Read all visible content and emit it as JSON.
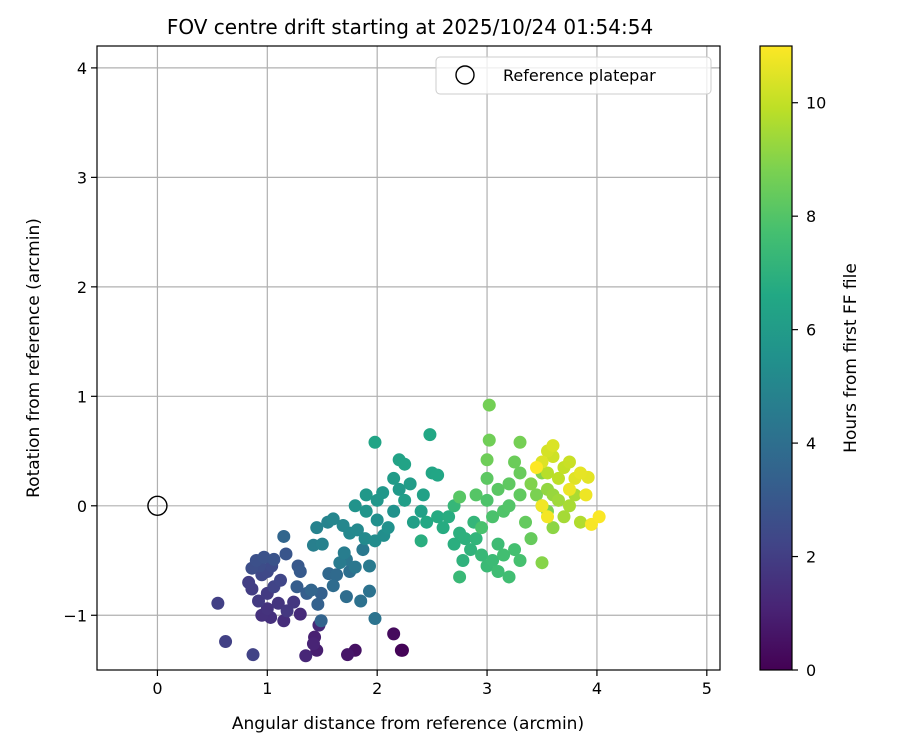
{
  "chart_data": {
    "type": "scatter",
    "title": "FOV centre drift starting at 2025/10/24 01:54:54",
    "xlabel": "Angular distance from reference (arcmin)",
    "ylabel": "Rotation from reference (arcmin)",
    "xlim": [
      -0.55,
      5.12
    ],
    "ylim": [
      -1.5,
      4.2
    ],
    "xticks": [
      0,
      1,
      2,
      3,
      4,
      5
    ],
    "yticks": [
      -1,
      0,
      1,
      2,
      3,
      4
    ],
    "grid": true,
    "legend": {
      "position": "top-right",
      "entries": [
        "Reference platepar"
      ]
    },
    "reference_point": {
      "x": 0,
      "y": 0,
      "label": "Reference platepar"
    },
    "colorbar": {
      "label": "Hours from first FF file",
      "range": [
        0,
        11
      ],
      "ticks": [
        0,
        2,
        4,
        6,
        8,
        10
      ],
      "colormap": "viridis"
    },
    "points": [
      [
        2.23,
        -1.32,
        0.05
      ],
      [
        2.22,
        -1.32,
        0.1
      ],
      [
        2.15,
        -1.17,
        0.3
      ],
      [
        1.8,
        -1.32,
        0.5
      ],
      [
        1.73,
        -1.36,
        0.7
      ],
      [
        1.45,
        -1.32,
        0.9
      ],
      [
        1.43,
        -1.2,
        1.0
      ],
      [
        1.42,
        -1.26,
        1.1
      ],
      [
        1.35,
        -1.37,
        1.2
      ],
      [
        1.47,
        -1.09,
        1.25
      ],
      [
        1.3,
        -0.99,
        1.35
      ],
      [
        1.15,
        -1.05,
        1.4
      ],
      [
        1.03,
        -1.02,
        1.5
      ],
      [
        0.95,
        -1.0,
        1.55
      ],
      [
        1.0,
        -0.94,
        1.6
      ],
      [
        1.1,
        -0.89,
        1.7
      ],
      [
        1.24,
        -0.88,
        1.75
      ],
      [
        1.18,
        -0.96,
        1.8
      ],
      [
        0.92,
        -0.87,
        1.85
      ],
      [
        1.0,
        -0.8,
        1.9
      ],
      [
        0.86,
        -0.76,
        1.95
      ],
      [
        0.83,
        -0.7,
        2.0
      ],
      [
        0.55,
        -0.89,
        2.05
      ],
      [
        0.62,
        -1.24,
        2.1
      ],
      [
        0.87,
        -1.36,
        2.15
      ],
      [
        1.06,
        -0.74,
        2.2
      ],
      [
        1.12,
        -0.68,
        2.3
      ],
      [
        0.95,
        -0.63,
        2.35
      ],
      [
        1.0,
        -0.6,
        2.4
      ],
      [
        1.04,
        -0.55,
        2.5
      ],
      [
        0.93,
        -0.55,
        2.55
      ],
      [
        0.86,
        -0.57,
        2.6
      ],
      [
        0.9,
        -0.5,
        2.7
      ],
      [
        0.97,
        -0.47,
        2.75
      ],
      [
        1.06,
        -0.49,
        2.8
      ],
      [
        1.17,
        -0.44,
        2.9
      ],
      [
        1.28,
        -0.55,
        3.0
      ],
      [
        1.3,
        -0.6,
        3.1
      ],
      [
        1.27,
        -0.74,
        3.2
      ],
      [
        1.36,
        -0.8,
        3.3
      ],
      [
        1.49,
        -0.8,
        3.35
      ],
      [
        1.46,
        -0.9,
        3.4
      ],
      [
        1.49,
        -1.05,
        3.5
      ],
      [
        1.4,
        -0.77,
        3.55
      ],
      [
        1.15,
        -0.28,
        3.6
      ],
      [
        1.56,
        -0.62,
        3.7
      ],
      [
        1.63,
        -0.63,
        3.8
      ],
      [
        1.6,
        -0.73,
        3.85
      ],
      [
        1.72,
        -0.83,
        3.9
      ],
      [
        1.75,
        -0.6,
        4.0
      ],
      [
        1.85,
        -0.87,
        4.1
      ],
      [
        1.93,
        -0.78,
        4.15
      ],
      [
        1.98,
        -1.03,
        4.2
      ],
      [
        1.72,
        -0.49,
        4.3
      ],
      [
        1.8,
        -0.56,
        4.35
      ],
      [
        1.87,
        -0.4,
        4.4
      ],
      [
        1.93,
        -0.55,
        4.5
      ],
      [
        1.66,
        -0.52,
        4.55
      ],
      [
        1.7,
        -0.43,
        4.6
      ],
      [
        1.42,
        -0.36,
        4.7
      ],
      [
        1.5,
        -0.35,
        4.8
      ],
      [
        1.45,
        -0.2,
        4.85
      ],
      [
        1.55,
        -0.15,
        4.9
      ],
      [
        1.6,
        -0.12,
        5.0
      ],
      [
        1.69,
        -0.18,
        5.05
      ],
      [
        1.75,
        -0.25,
        5.1
      ],
      [
        1.82,
        -0.22,
        5.15
      ],
      [
        1.89,
        -0.3,
        5.2
      ],
      [
        1.98,
        -0.32,
        5.3
      ],
      [
        2.06,
        -0.27,
        5.35
      ],
      [
        2.0,
        -0.13,
        5.4
      ],
      [
        2.1,
        -0.2,
        5.5
      ],
      [
        2.15,
        -0.05,
        5.55
      ],
      [
        1.8,
        0.0,
        5.6
      ],
      [
        1.9,
        -0.05,
        5.7
      ],
      [
        2.0,
        0.05,
        5.75
      ],
      [
        2.05,
        0.12,
        5.8
      ],
      [
        1.9,
        0.1,
        5.85
      ],
      [
        2.2,
        0.15,
        5.9
      ],
      [
        2.15,
        0.25,
        6.0
      ],
      [
        2.3,
        0.2,
        6.05
      ],
      [
        2.25,
        0.05,
        6.1
      ],
      [
        2.33,
        -0.15,
        6.15
      ],
      [
        2.4,
        -0.05,
        6.2
      ],
      [
        2.42,
        0.1,
        6.25
      ],
      [
        2.2,
        0.42,
        6.3
      ],
      [
        2.25,
        0.38,
        6.35
      ],
      [
        1.98,
        0.58,
        6.4
      ],
      [
        2.5,
        0.3,
        6.45
      ],
      [
        2.55,
        0.28,
        6.5
      ],
      [
        2.48,
        0.65,
        6.55
      ],
      [
        2.45,
        -0.15,
        6.6
      ],
      [
        2.55,
        -0.1,
        6.7
      ],
      [
        2.6,
        -0.2,
        6.75
      ],
      [
        2.65,
        -0.1,
        6.8
      ],
      [
        2.4,
        -0.32,
        6.85
      ],
      [
        2.7,
        -0.35,
        6.9
      ],
      [
        2.75,
        -0.25,
        6.95
      ],
      [
        2.8,
        -0.3,
        7.0
      ],
      [
        2.78,
        -0.5,
        7.05
      ],
      [
        2.85,
        -0.4,
        7.1
      ],
      [
        2.9,
        -0.3,
        7.15
      ],
      [
        2.88,
        -0.15,
        7.2
      ],
      [
        2.7,
        0.0,
        7.25
      ],
      [
        2.95,
        -0.45,
        7.3
      ],
      [
        2.75,
        -0.65,
        7.35
      ],
      [
        3.0,
        -0.55,
        7.4
      ],
      [
        3.05,
        -0.5,
        7.45
      ],
      [
        3.1,
        -0.35,
        7.5
      ],
      [
        3.1,
        -0.6,
        7.55
      ],
      [
        3.2,
        -0.65,
        7.6
      ],
      [
        3.15,
        -0.45,
        7.65
      ],
      [
        3.25,
        -0.4,
        7.7
      ],
      [
        3.3,
        -0.5,
        7.75
      ],
      [
        2.95,
        -0.2,
        7.8
      ],
      [
        3.05,
        -0.1,
        7.85
      ],
      [
        3.0,
        0.05,
        7.9
      ],
      [
        3.15,
        -0.05,
        7.95
      ],
      [
        3.2,
        0.0,
        8.0
      ],
      [
        2.9,
        0.1,
        8.05
      ],
      [
        2.75,
        0.08,
        8.1
      ],
      [
        3.1,
        0.15,
        8.15
      ],
      [
        3.0,
        0.25,
        8.2
      ],
      [
        3.2,
        0.2,
        8.25
      ],
      [
        3.3,
        0.1,
        8.3
      ],
      [
        3.35,
        -0.15,
        8.35
      ],
      [
        3.4,
        -0.3,
        8.4
      ],
      [
        3.3,
        0.3,
        8.45
      ],
      [
        3.25,
        0.4,
        8.5
      ],
      [
        3.0,
        0.42,
        8.55
      ],
      [
        3.02,
        0.6,
        8.6
      ],
      [
        3.02,
        0.92,
        8.65
      ],
      [
        3.3,
        0.58,
        8.7
      ],
      [
        3.5,
        0.0,
        8.75
      ],
      [
        3.45,
        0.1,
        8.8
      ],
      [
        3.55,
        -0.05,
        8.85
      ],
      [
        3.4,
        0.2,
        8.9
      ],
      [
        3.5,
        0.3,
        8.95
      ],
      [
        3.5,
        -0.52,
        9.0
      ],
      [
        3.6,
        -0.2,
        9.1
      ],
      [
        3.55,
        0.15,
        9.2
      ],
      [
        3.6,
        0.1,
        9.3
      ],
      [
        3.65,
        0.05,
        9.4
      ],
      [
        3.7,
        -0.1,
        9.5
      ],
      [
        3.75,
        0.0,
        9.55
      ],
      [
        3.8,
        0.1,
        9.6
      ],
      [
        3.85,
        -0.15,
        9.7
      ],
      [
        3.55,
        0.3,
        9.8
      ],
      [
        3.65,
        0.25,
        9.9
      ],
      [
        3.7,
        0.35,
        10.0
      ],
      [
        3.75,
        0.4,
        10.1
      ],
      [
        3.6,
        0.45,
        10.2
      ],
      [
        3.55,
        0.5,
        10.3
      ],
      [
        3.6,
        0.55,
        10.4
      ],
      [
        3.5,
        0.4,
        10.45
      ],
      [
        3.8,
        0.25,
        10.5
      ],
      [
        3.92,
        0.26,
        10.55
      ],
      [
        3.85,
        0.3,
        10.6
      ],
      [
        3.75,
        0.15,
        10.7
      ],
      [
        3.9,
        0.1,
        10.75
      ],
      [
        3.5,
        0.0,
        10.8
      ],
      [
        3.55,
        -0.1,
        10.85
      ],
      [
        3.95,
        -0.17,
        10.9
      ],
      [
        4.02,
        -0.1,
        10.95
      ],
      [
        3.45,
        0.35,
        11.0
      ]
    ]
  }
}
